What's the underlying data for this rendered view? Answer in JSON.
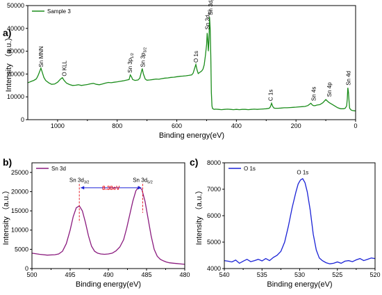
{
  "chart_data": [
    {
      "id": "a",
      "type": "line",
      "panel_label": "a)",
      "xlabel": "Binding energy(eV)",
      "ylabel": "Intensity （a.u.）",
      "xlim": [
        1100,
        0
      ],
      "ylim": [
        0,
        50000
      ],
      "x_ticks": [
        1000,
        800,
        600,
        400,
        200,
        0
      ],
      "y_ticks": [
        0,
        10000,
        20000,
        30000,
        40000,
        50000
      ],
      "legend": {
        "position": "top-left",
        "entries": [
          "Sample 3"
        ]
      },
      "series": [
        {
          "name": "Sample 3",
          "color": "#1a8c1a",
          "x": [
            1100,
            1095,
            1088,
            1080,
            1072,
            1068,
            1064,
            1060,
            1056,
            1052,
            1046,
            1040,
            1030,
            1020,
            1010,
            1000,
            990,
            984,
            978,
            970,
            960,
            950,
            940,
            930,
            920,
            910,
            900,
            890,
            880,
            870,
            860,
            850,
            840,
            830,
            820,
            810,
            800,
            790,
            780,
            770,
            760,
            756,
            752,
            748,
            740,
            730,
            724,
            720,
            716,
            712,
            706,
            700,
            690,
            680,
            670,
            660,
            650,
            640,
            630,
            620,
            610,
            600,
            590,
            580,
            570,
            560,
            550,
            545,
            540,
            536,
            532,
            528,
            524,
            520,
            516,
            512,
            508,
            504,
            500,
            498,
            496,
            494,
            492,
            490,
            488,
            486,
            484,
            482,
            480,
            475,
            470,
            460,
            450,
            440,
            430,
            420,
            410,
            400,
            390,
            380,
            370,
            360,
            350,
            340,
            330,
            320,
            310,
            300,
            290,
            286,
            282,
            278,
            274,
            270,
            260,
            250,
            240,
            230,
            220,
            210,
            200,
            190,
            180,
            170,
            160,
            150,
            145,
            140,
            135,
            130,
            120,
            110,
            100,
            95,
            90,
            85,
            80,
            70,
            60,
            50,
            40,
            35,
            30,
            28,
            26,
            24,
            22,
            20,
            15,
            10,
            5,
            0
          ],
          "y": [
            16200,
            16400,
            16800,
            17200,
            17800,
            18600,
            19800,
            21200,
            22600,
            21000,
            18500,
            17200,
            16200,
            15500,
            15600,
            16400,
            17800,
            18400,
            17200,
            16000,
            15400,
            15000,
            15100,
            15300,
            15000,
            15200,
            15400,
            15700,
            15900,
            15500,
            15300,
            15600,
            16000,
            16300,
            16200,
            16400,
            16600,
            16800,
            17000,
            17300,
            17600,
            19600,
            18800,
            17600,
            17200,
            17400,
            18200,
            20400,
            22400,
            20000,
            17800,
            17300,
            17400,
            17600,
            17800,
            17700,
            18000,
            18200,
            18300,
            18500,
            18600,
            18800,
            19000,
            19100,
            19200,
            19400,
            19600,
            20400,
            22600,
            24200,
            21800,
            20200,
            20600,
            21000,
            21400,
            22200,
            24000,
            28000,
            33000,
            38000,
            35000,
            30000,
            35000,
            45000,
            40000,
            28000,
            12000,
            6000,
            4900,
            4500,
            4600,
            4500,
            4400,
            4500,
            4600,
            4500,
            4400,
            4500,
            4400,
            4500,
            4500,
            4400,
            4500,
            4600,
            4500,
            4600,
            4700,
            4800,
            5000,
            5600,
            7200,
            5800,
            5100,
            5000,
            5000,
            5100,
            5200,
            5200,
            5300,
            5400,
            5500,
            5600,
            5700,
            5800,
            6200,
            7200,
            6400,
            6100,
            6200,
            6400,
            6600,
            7400,
            8800,
            8200,
            7600,
            7200,
            6800,
            6000,
            5200,
            4800,
            4800,
            5000,
            6000,
            9000,
            14000,
            12000,
            8000,
            5000,
            4200,
            4000,
            3900,
            3800
          ]
        }
      ],
      "annotations": [
        {
          "x": 1056,
          "y": 23000,
          "text": "Sn MNN"
        },
        {
          "x": 978,
          "y": 19000,
          "text": "O KLL"
        },
        {
          "x": 757,
          "y": 20500,
          "text": "Sn 3p",
          "sub": "1/2"
        },
        {
          "x": 714,
          "y": 23000,
          "text": "Sn 3p",
          "sub": "3/2"
        },
        {
          "x": 536,
          "y": 25000,
          "text": "O 1s"
        },
        {
          "x": 497,
          "y": 39500,
          "text": "Sn 3d",
          "sub": "3/2"
        },
        {
          "x": 487,
          "y": 45800,
          "text": "Sn 3d",
          "sub": "5/2"
        },
        {
          "x": 285,
          "y": 8200,
          "text": "C 1s"
        },
        {
          "x": 141,
          "y": 8200,
          "text": "Sn 4s"
        },
        {
          "x": 88,
          "y": 10000,
          "text": "Sn 4p"
        },
        {
          "x": 24,
          "y": 15000,
          "text": "Sn 4d"
        }
      ]
    },
    {
      "id": "b",
      "type": "line",
      "panel_label": "b)",
      "xlabel": "Binding energy(eV)",
      "ylabel": "Intensity （a.u.）",
      "xlim": [
        500,
        480
      ],
      "ylim": [
        0,
        27500
      ],
      "x_ticks": [
        500,
        495,
        490,
        485,
        480
      ],
      "y_ticks": [
        0,
        5000,
        10000,
        15000,
        20000,
        25000
      ],
      "legend": {
        "position": "top-left",
        "entries": [
          "Sn 3d"
        ]
      },
      "series": [
        {
          "name": "Sn 3d",
          "color": "#8a1a7e",
          "x": [
            500,
            499,
            498,
            497,
            496.5,
            496,
            495.5,
            495,
            494.6,
            494.2,
            493.8,
            493.4,
            493,
            492.6,
            492.2,
            491.8,
            491.4,
            491,
            490.5,
            490,
            489.5,
            489,
            488.5,
            488,
            487.6,
            487.2,
            486.8,
            486.4,
            486,
            485.6,
            485.2,
            484.8,
            484.4,
            484,
            483.6,
            483.2,
            482.8,
            482.4,
            482,
            481.5,
            481,
            480.5,
            480
          ],
          "y": [
            4000,
            3700,
            3500,
            3600,
            3800,
            4500,
            6500,
            10000,
            13500,
            15800,
            16300,
            15000,
            12000,
            8500,
            5800,
            4500,
            4000,
            3800,
            3700,
            3800,
            4000,
            4600,
            5600,
            7500,
            10500,
            14000,
            17500,
            20200,
            21300,
            20500,
            17500,
            13000,
            8500,
            5000,
            3200,
            2400,
            2000,
            1700,
            1500,
            1400,
            1300,
            1200,
            1100
          ]
        }
      ],
      "annotations": [
        {
          "x": 493.8,
          "y": 22500,
          "text": "Sn 3d",
          "sub": "3/2"
        },
        {
          "x": 485.5,
          "y": 22500,
          "text": "Sn 3d",
          "sub": "5/2"
        }
      ],
      "separation": {
        "from": 493.8,
        "to": 485.5,
        "y": 21000,
        "label": "8.38eV"
      }
    },
    {
      "id": "c",
      "type": "line",
      "panel_label": "c)",
      "xlabel": "Binding energy(eV)",
      "ylabel": "Intensity （a.u.）",
      "xlim": [
        540,
        520
      ],
      "ylim": [
        4000,
        8000
      ],
      "x_ticks": [
        540,
        535,
        530,
        525,
        520
      ],
      "y_ticks": [
        4000,
        5000,
        6000,
        7000,
        8000
      ],
      "legend": {
        "position": "top-left",
        "entries": [
          "O 1s"
        ]
      },
      "series": [
        {
          "name": "O 1s",
          "color": "#1a22d6",
          "x": [
            540,
            539.5,
            539,
            538.5,
            538,
            537.5,
            537,
            536.5,
            536,
            535.5,
            535,
            534.5,
            534,
            533.5,
            533,
            532.5,
            532,
            531.5,
            531,
            530.5,
            530.2,
            529.9,
            529.6,
            529.3,
            529,
            528.6,
            528.2,
            527.8,
            527.4,
            527,
            526.5,
            526,
            525.5,
            525,
            524.5,
            524,
            523.5,
            523,
            522.5,
            522,
            521.5,
            521,
            520.5,
            520
          ],
          "y": [
            4300,
            4280,
            4250,
            4320,
            4200,
            4280,
            4350,
            4260,
            4300,
            4350,
            4290,
            4380,
            4300,
            4420,
            4500,
            4650,
            5000,
            5600,
            6300,
            6900,
            7200,
            7350,
            7400,
            7250,
            6900,
            6200,
            5300,
            4700,
            4400,
            4300,
            4220,
            4180,
            4200,
            4250,
            4200,
            4280,
            4300,
            4260,
            4330,
            4380,
            4300,
            4350,
            4400,
            4380
          ]
        }
      ],
      "annotations": [
        {
          "x": 529.6,
          "y": 7560,
          "text": "O 1s"
        }
      ]
    }
  ]
}
